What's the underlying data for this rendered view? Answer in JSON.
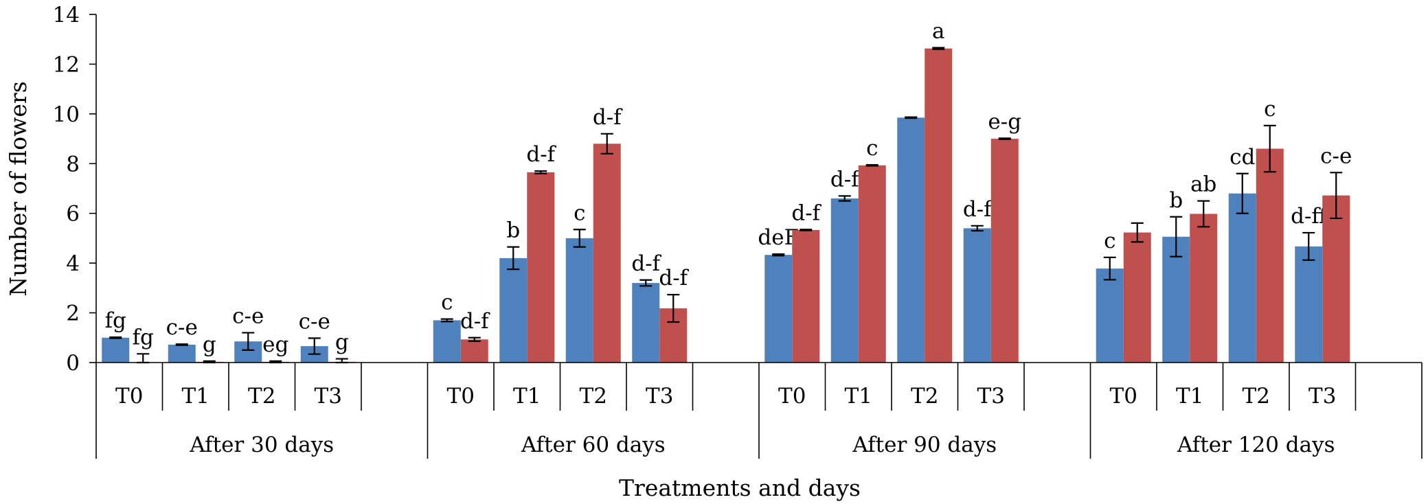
{
  "chart_data": {
    "type": "bar",
    "ylabel": "Number of flowers",
    "xlabel": "Treatments and days",
    "ylim": [
      0,
      14
    ],
    "yticks": [
      0,
      2,
      4,
      6,
      8,
      10,
      12,
      14
    ],
    "grid": false,
    "legend": "none",
    "colors": [
      "#4F81BD",
      "#C0504D"
    ],
    "groups": [
      {
        "label": "After 30 days",
        "categories": [
          "T0",
          "T1",
          "T2",
          "T3"
        ],
        "series": [
          {
            "values": [
              1.0,
              0.72,
              0.85,
              0.66
            ],
            "errors": [
              0.02,
              0.02,
              0.35,
              0.32
            ],
            "labels": [
              "fg",
              "c-e",
              "c-e",
              "c-e"
            ]
          },
          {
            "values": [
              0.0,
              0.03,
              0.03,
              0.03
            ],
            "errors": [
              0.35,
              0.03,
              0.03,
              0.12
            ],
            "labels": [
              "fg",
              "g",
              "eg",
              "g"
            ]
          }
        ]
      },
      {
        "label": "After 60 days",
        "categories": [
          "T0",
          "T1",
          "T2",
          "T3"
        ],
        "series": [
          {
            "values": [
              1.7,
              4.2,
              5.0,
              3.2
            ],
            "errors": [
              0.05,
              0.45,
              0.35,
              0.12
            ],
            "labels": [
              "c",
              "b",
              "c",
              "d-f"
            ]
          },
          {
            "values": [
              0.93,
              7.65,
              8.8,
              2.18
            ],
            "errors": [
              0.07,
              0.05,
              0.4,
              0.55
            ],
            "labels": [
              "d-f",
              "d-f",
              "d-f",
              "d-f"
            ]
          }
        ]
      },
      {
        "label": "After 90 days",
        "categories": [
          "T0",
          "T1",
          "T2",
          "T3"
        ],
        "series": [
          {
            "values": [
              4.33,
              6.6,
              9.85,
              5.4
            ],
            "errors": [
              0.03,
              0.1,
              0.02,
              0.1
            ],
            "labels": [
              "deF",
              "d-f",
              "",
              "d-f"
            ]
          },
          {
            "values": [
              5.33,
              7.93,
              12.63,
              9.0
            ],
            "errors": [
              0.02,
              0.02,
              0.03,
              0.02
            ],
            "labels": [
              "d-f",
              "c",
              "a",
              "e-g"
            ]
          }
        ]
      },
      {
        "label": "After 120 days",
        "categories": [
          "T0",
          "T1",
          "T2",
          "T3"
        ],
        "series": [
          {
            "values": [
              3.78,
              5.06,
              6.8,
              4.67
            ],
            "errors": [
              0.45,
              0.8,
              0.8,
              0.55
            ],
            "labels": [
              "c",
              "b",
              "cd",
              "d-ff"
            ]
          },
          {
            "values": [
              5.23,
              5.98,
              8.6,
              6.72
            ],
            "errors": [
              0.38,
              0.52,
              0.93,
              0.92
            ],
            "labels": [
              "",
              "ab",
              "c",
              "c-e"
            ]
          }
        ]
      }
    ]
  }
}
